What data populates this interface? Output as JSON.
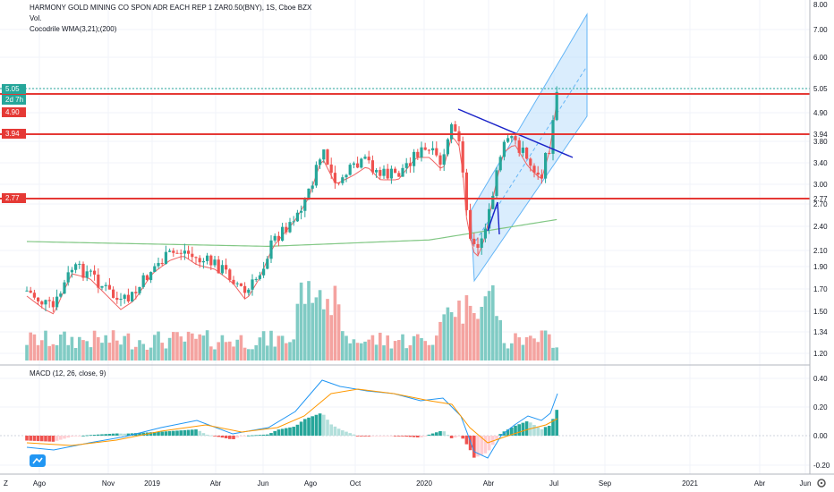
{
  "header": {
    "title": "HARMONY GOLD MINING CO SPON ADR EACH REP 1 ZAR0.50(BNY), 1S, Cboe BZX",
    "vol_label": "Vol.",
    "indicator_label": "Cocodrile WMA(3,21);(200)"
  },
  "macd": {
    "label": "MACD (12, 26, close, 9)",
    "axis_labels": [
      "0.40",
      "0.20",
      "0.00",
      "-0.20"
    ]
  },
  "price_axis": {
    "labels": [
      "8.00",
      "7.00",
      "6.00",
      "5.05",
      "4.90",
      "3.94",
      "3.80",
      "3.40",
      "3.00",
      "2.77",
      "2.70",
      "2.40",
      "2.10",
      "1.90",
      "1.70",
      "1.50",
      "1.34",
      "1.20"
    ],
    "current_price": "5.05",
    "countdown": "2d 7h"
  },
  "levels": [
    {
      "value": "4.90",
      "color": "#e53935"
    },
    {
      "value": "3.94",
      "color": "#e53935"
    },
    {
      "value": "2.77",
      "color": "#e53935"
    }
  ],
  "time_axis": {
    "labels": [
      "Ago",
      "Nov",
      "2019",
      "Abr",
      "Jun",
      "Ago",
      "Oct",
      "2020",
      "Abr",
      "Jul",
      "Sep",
      "2021",
      "Abr",
      "Jun"
    ],
    "scroll_icon": "Z"
  },
  "colors": {
    "up": "#26a69a",
    "down": "#ef5350",
    "accent_blue": "#2962ff",
    "wma_short": "#f06262",
    "wma_long": "#81c784",
    "macd_line": "#2196f3",
    "signal_line": "#ff9800",
    "current_tag": "#26a69a"
  },
  "icons": {
    "logo": "tradingview-cloud-icon",
    "settings": "gear-icon"
  }
}
